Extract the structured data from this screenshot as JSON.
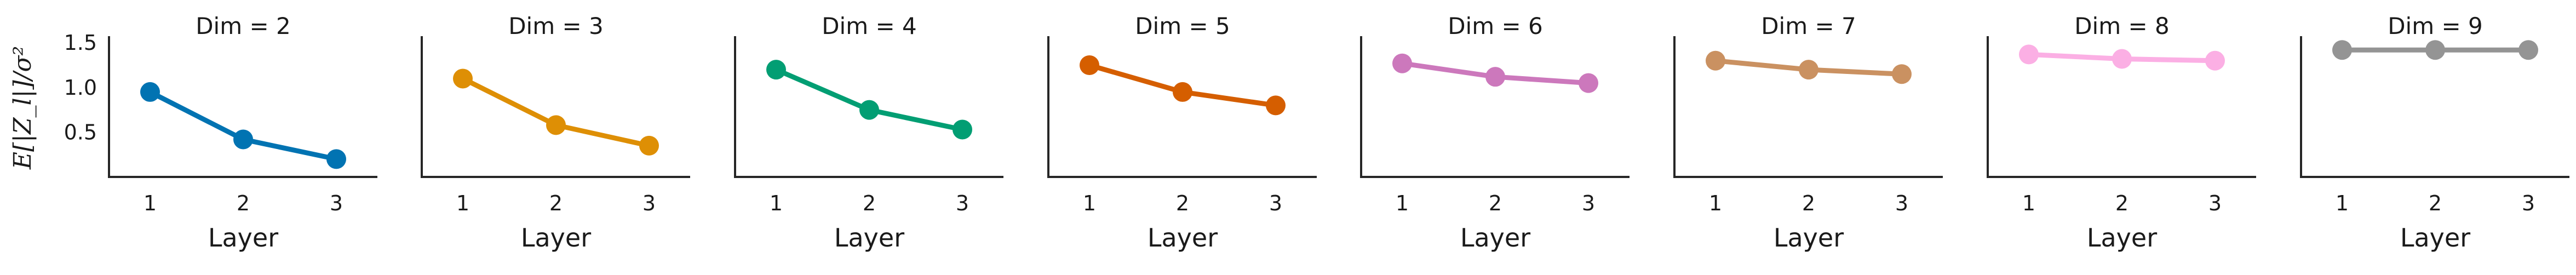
{
  "chart_data": [
    {
      "type": "line",
      "title": "Dim = 2",
      "xlabel": "Layer",
      "ylabel": "E[|Z_l|]/σ²",
      "x": [
        1,
        2,
        3
      ],
      "values": [
        0.95,
        0.42,
        0.2
      ],
      "color": "#0173b2",
      "ylim": [
        0.0,
        1.55
      ],
      "yticks": [
        "0.5",
        "1.0",
        "1.5"
      ],
      "xticks": [
        "1",
        "2",
        "3"
      ],
      "grid": false
    },
    {
      "type": "line",
      "title": "Dim = 3",
      "xlabel": "Layer",
      "ylabel": "",
      "x": [
        1,
        2,
        3
      ],
      "values": [
        1.1,
        0.58,
        0.35
      ],
      "color": "#de8f05",
      "ylim": [
        0.0,
        1.55
      ],
      "yticks": [],
      "xticks": [
        "1",
        "2",
        "3"
      ],
      "grid": false
    },
    {
      "type": "line",
      "title": "Dim = 4",
      "xlabel": "Layer",
      "ylabel": "",
      "x": [
        1,
        2,
        3
      ],
      "values": [
        1.2,
        0.75,
        0.53
      ],
      "color": "#029e73",
      "ylim": [
        0.0,
        1.55
      ],
      "yticks": [],
      "xticks": [
        "1",
        "2",
        "3"
      ],
      "grid": false
    },
    {
      "type": "line",
      "title": "Dim = 5",
      "xlabel": "Layer",
      "ylabel": "",
      "x": [
        1,
        2,
        3
      ],
      "values": [
        1.25,
        0.95,
        0.8
      ],
      "color": "#d55e00",
      "ylim": [
        0.0,
        1.55
      ],
      "yticks": [],
      "xticks": [
        "1",
        "2",
        "3"
      ],
      "grid": false
    },
    {
      "type": "line",
      "title": "Dim = 6",
      "xlabel": "Layer",
      "ylabel": "",
      "x": [
        1,
        2,
        3
      ],
      "values": [
        1.27,
        1.12,
        1.05
      ],
      "color": "#cc78bc",
      "ylim": [
        0.0,
        1.55
      ],
      "yticks": [],
      "xticks": [
        "1",
        "2",
        "3"
      ],
      "grid": false
    },
    {
      "type": "line",
      "title": "Dim = 7",
      "xlabel": "Layer",
      "ylabel": "",
      "x": [
        1,
        2,
        3
      ],
      "values": [
        1.3,
        1.2,
        1.15
      ],
      "color": "#ca9161",
      "ylim": [
        0.0,
        1.55
      ],
      "yticks": [],
      "xticks": [
        "1",
        "2",
        "3"
      ],
      "grid": false
    },
    {
      "type": "line",
      "title": "Dim = 8",
      "xlabel": "Layer",
      "ylabel": "",
      "x": [
        1,
        2,
        3
      ],
      "values": [
        1.37,
        1.32,
        1.3
      ],
      "color": "#fbafe4",
      "ylim": [
        0.0,
        1.55
      ],
      "yticks": [],
      "xticks": [
        "1",
        "2",
        "3"
      ],
      "grid": false
    },
    {
      "type": "line",
      "title": "Dim = 9",
      "xlabel": "Layer",
      "ylabel": "",
      "x": [
        1,
        2,
        3
      ],
      "values": [
        1.42,
        1.42,
        1.42
      ],
      "color": "#949494",
      "ylim": [
        0.0,
        1.55
      ],
      "yticks": [],
      "xticks": [
        "1",
        "2",
        "3"
      ],
      "grid": false
    }
  ]
}
